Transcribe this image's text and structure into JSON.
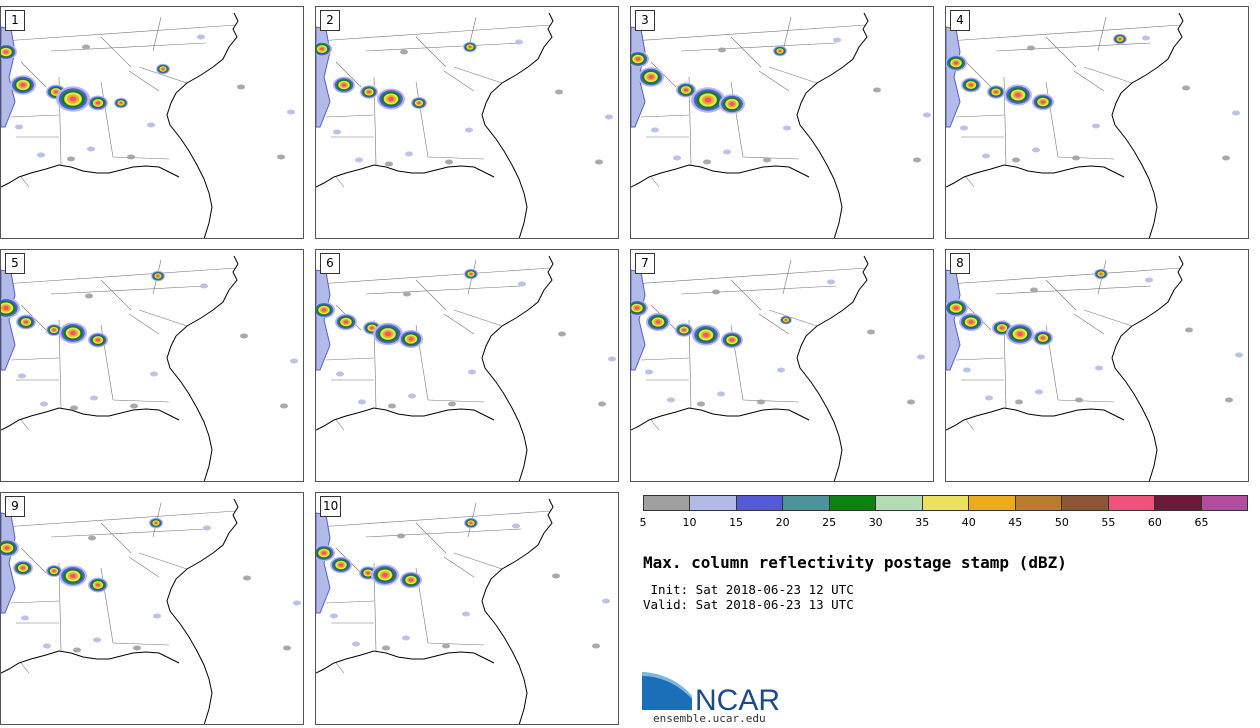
{
  "panels": [
    {
      "label": "1",
      "storms": [
        [
          22,
          78,
          13
        ],
        [
          55,
          85,
          10
        ],
        [
          72,
          92,
          17
        ],
        [
          97,
          96,
          10
        ],
        [
          120,
          96,
          7
        ],
        [
          162,
          62,
          7
        ],
        [
          5,
          45,
          11
        ]
      ]
    },
    {
      "label": "2",
      "storms": [
        [
          28,
          78,
          11
        ],
        [
          53,
          85,
          9
        ],
        [
          75,
          92,
          14
        ],
        [
          103,
          96,
          8
        ],
        [
          154,
          40,
          7
        ],
        [
          6,
          42,
          10
        ]
      ]
    },
    {
      "label": "3",
      "storms": [
        [
          20,
          70,
          13
        ],
        [
          55,
          83,
          10
        ],
        [
          77,
          93,
          17
        ],
        [
          101,
          97,
          13
        ],
        [
          149,
          44,
          7
        ],
        [
          7,
          52,
          11
        ]
      ]
    },
    {
      "label": "4",
      "storms": [
        [
          25,
          78,
          10
        ],
        [
          50,
          85,
          9
        ],
        [
          72,
          88,
          14
        ],
        [
          97,
          95,
          11
        ],
        [
          174,
          32,
          7
        ],
        [
          10,
          56,
          11
        ]
      ]
    },
    {
      "label": "5",
      "storms": [
        [
          25,
          72,
          10
        ],
        [
          53,
          80,
          8
        ],
        [
          72,
          83,
          14
        ],
        [
          97,
          90,
          10
        ],
        [
          157,
          26,
          7
        ],
        [
          5,
          58,
          14
        ]
      ]
    },
    {
      "label": "6",
      "storms": [
        [
          30,
          72,
          11
        ],
        [
          56,
          78,
          9
        ],
        [
          72,
          84,
          15
        ],
        [
          95,
          89,
          12
        ],
        [
          155,
          24,
          7
        ],
        [
          8,
          60,
          11
        ]
      ]
    },
    {
      "label": "7",
      "storms": [
        [
          27,
          72,
          12
        ],
        [
          53,
          80,
          9
        ],
        [
          75,
          85,
          14
        ],
        [
          101,
          90,
          11
        ],
        [
          155,
          70,
          6
        ],
        [
          6,
          58,
          11
        ]
      ]
    },
    {
      "label": "8",
      "storms": [
        [
          25,
          72,
          12
        ],
        [
          56,
          78,
          10
        ],
        [
          74,
          84,
          14
        ],
        [
          97,
          88,
          10
        ],
        [
          155,
          24,
          7
        ],
        [
          10,
          58,
          12
        ]
      ]
    },
    {
      "label": "9",
      "storms": [
        [
          22,
          75,
          10
        ],
        [
          53,
          78,
          8
        ],
        [
          72,
          83,
          14
        ],
        [
          97,
          92,
          10
        ],
        [
          155,
          30,
          7
        ],
        [
          6,
          55,
          12
        ]
      ]
    },
    {
      "label": "10",
      "storms": [
        [
          25,
          72,
          11
        ],
        [
          52,
          80,
          9
        ],
        [
          69,
          82,
          14
        ],
        [
          95,
          87,
          11
        ],
        [
          155,
          30,
          7
        ],
        [
          8,
          60,
          11
        ]
      ]
    }
  ],
  "colorbar": {
    "colors": [
      "#a0a0a0",
      "#b2bbe8",
      "#555bd8",
      "#4e9399",
      "#0a8310",
      "#b4dcb4",
      "#ede160",
      "#ecac1e",
      "#b87d2e",
      "#8c5638",
      "#ef537c",
      "#6d1a38",
      "#b44ca0"
    ],
    "ticks": [
      "5",
      "10",
      "15",
      "20",
      "25",
      "30",
      "35",
      "40",
      "45",
      "50",
      "55",
      "60",
      "65"
    ]
  },
  "title": "Max. column reflectivity postage stamp (dBZ)",
  "init": " Init: Sat 2018-06-23 12 UTC",
  "valid": "Valid: Sat 2018-06-23 13 UTC",
  "logo": {
    "name": "NCAR",
    "url": "ensemble.ucar.edu"
  }
}
